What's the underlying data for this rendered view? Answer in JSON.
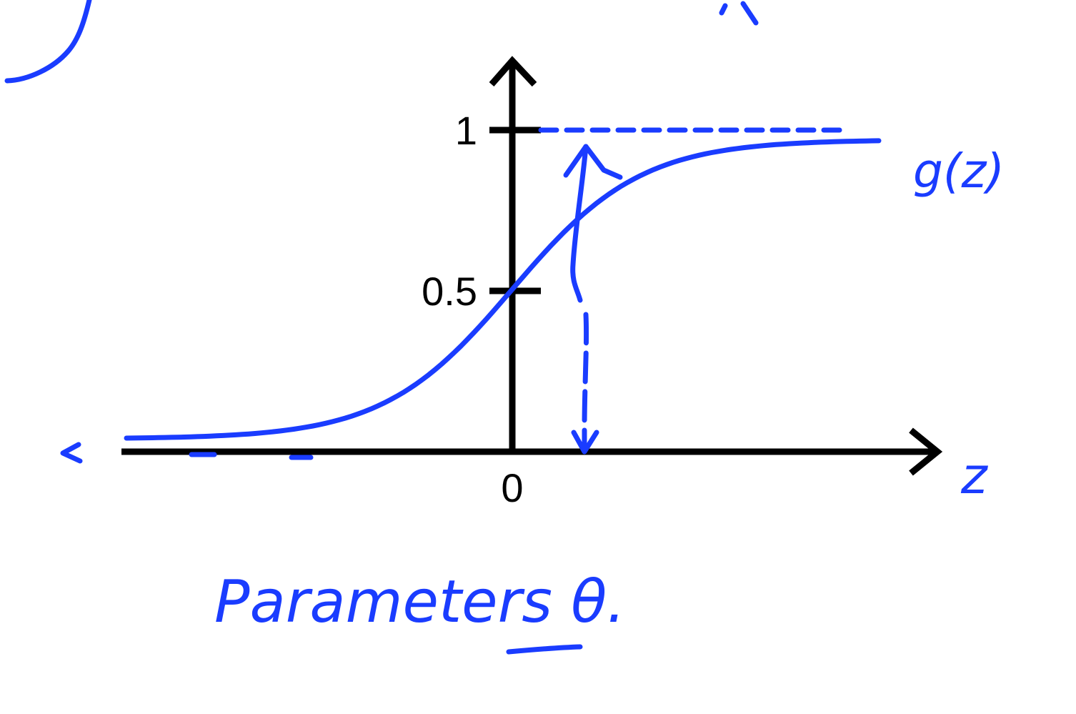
{
  "chart_data": {
    "type": "line",
    "title": "",
    "xlabel": "z",
    "ylabel": "",
    "xlim": [
      -6,
      6
    ],
    "ylim": [
      0,
      1
    ],
    "y_ticks": [
      {
        "value": 1,
        "label": "1"
      },
      {
        "value": 0.5,
        "label": "0.5"
      }
    ],
    "x_ticks": [
      {
        "value": 0,
        "label": "0"
      }
    ],
    "series": [
      {
        "name": "g(z)",
        "function": "sigmoid",
        "x": [
          -6,
          -5,
          -4,
          -3,
          -2,
          -1,
          0,
          1,
          2,
          3,
          4,
          5,
          6
        ],
        "values": [
          0.0025,
          0.0067,
          0.018,
          0.047,
          0.119,
          0.269,
          0.5,
          0.731,
          0.881,
          0.953,
          0.982,
          0.993,
          0.9975
        ]
      }
    ],
    "asymptote_y": 1,
    "grid": false
  },
  "annotations": {
    "curve_label": "g(z)",
    "axis_label": "z",
    "parameters_note": "Parameters θ."
  },
  "colors": {
    "ink": "#1a3cff",
    "axes": "#000000",
    "background": "#ffffff"
  }
}
